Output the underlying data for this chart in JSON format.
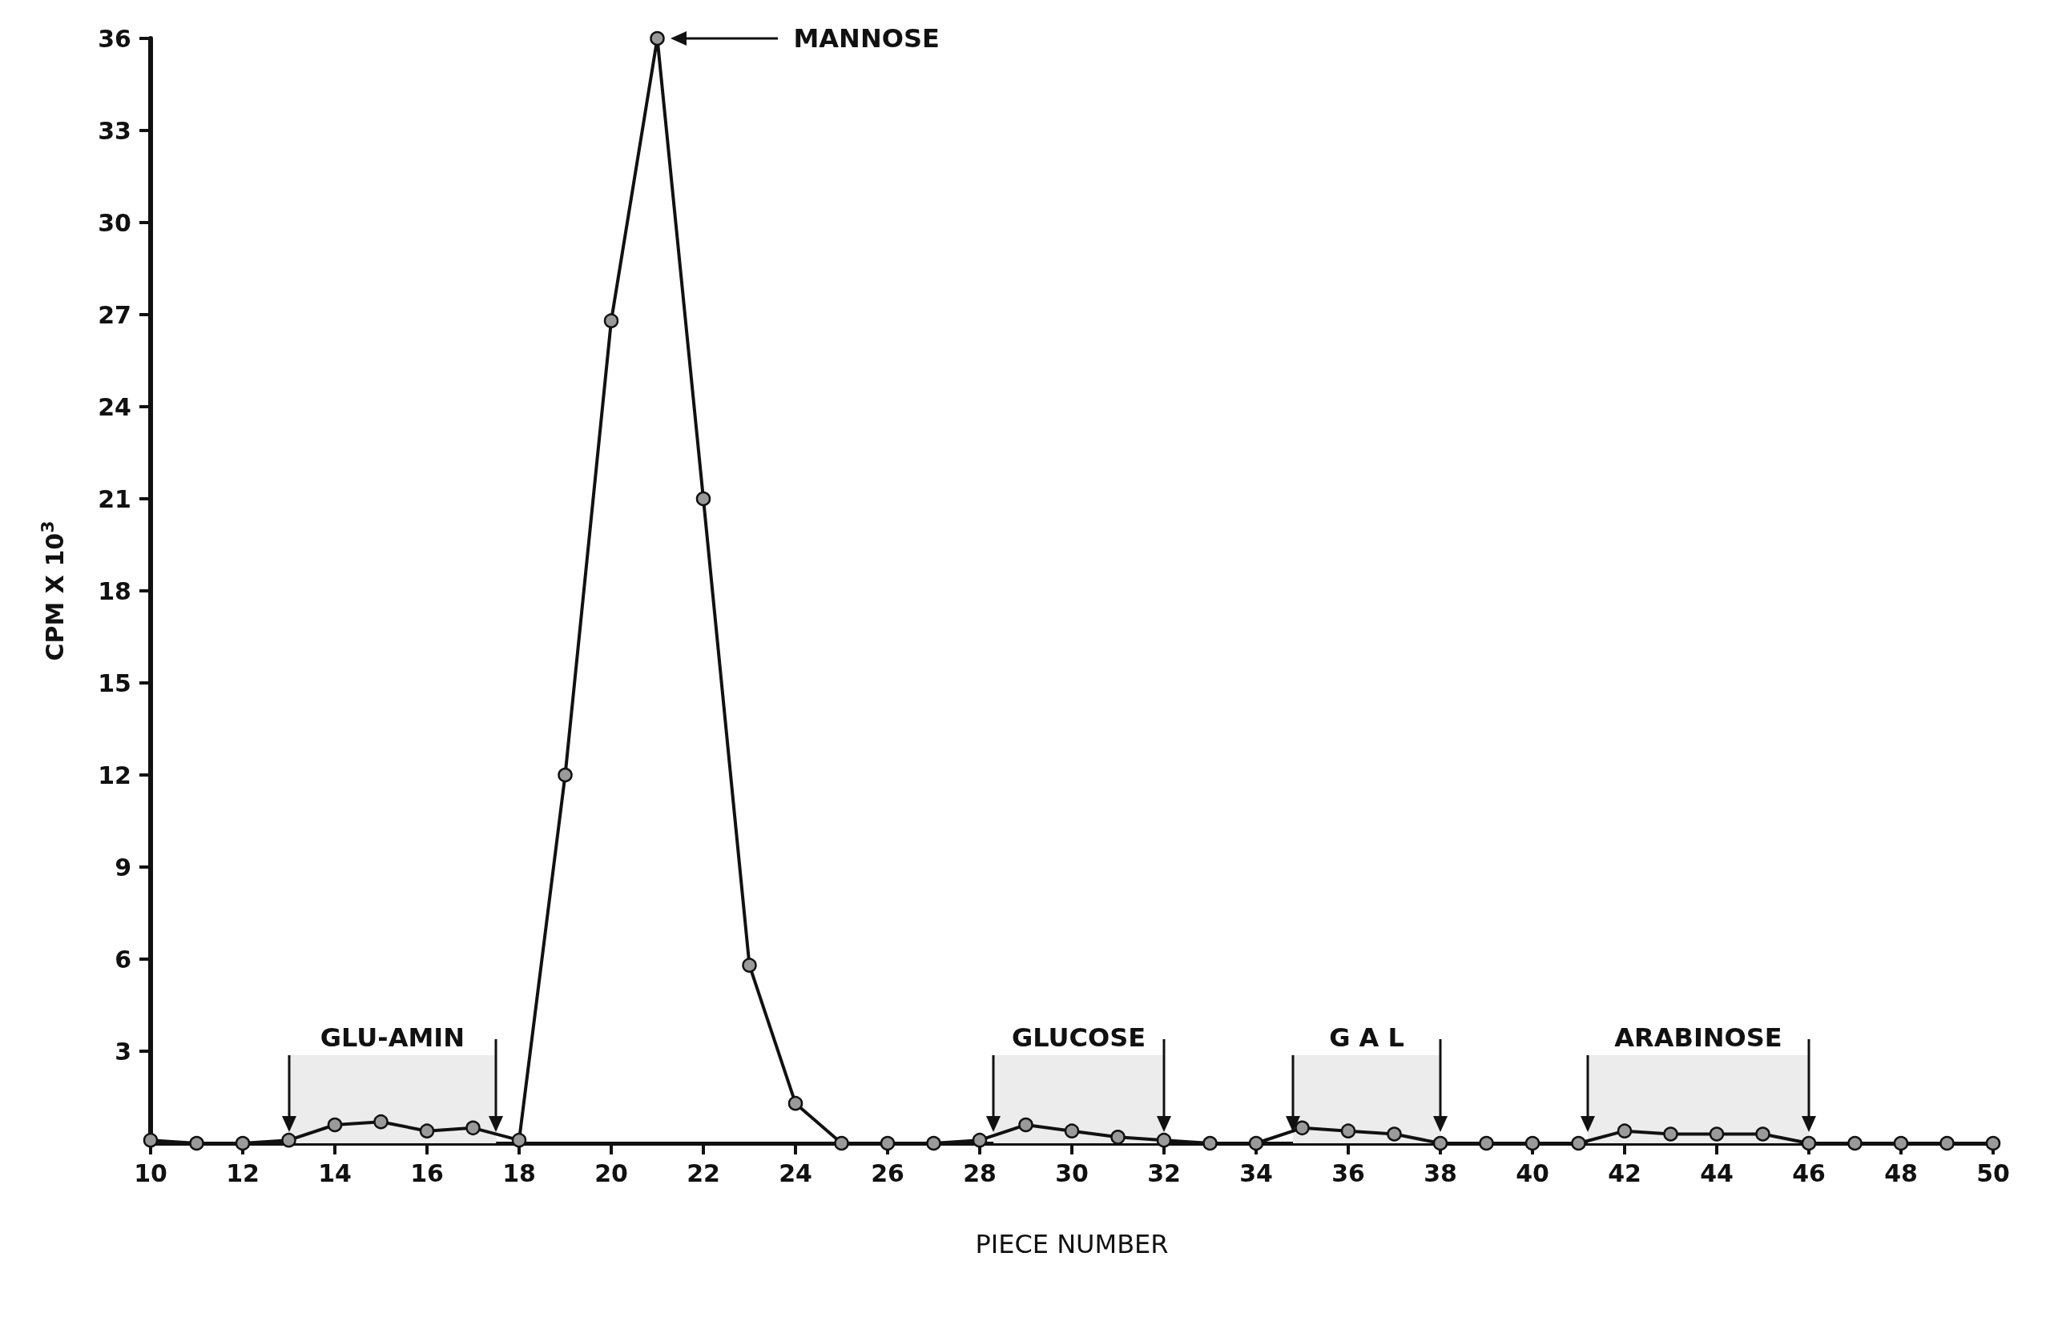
{
  "chart_data": {
    "type": "line",
    "xlabel": "PIECE NUMBER",
    "ylabel": "CPM X 10$^{3}$",
    "x": [
      10,
      11,
      12,
      13,
      14,
      15,
      16,
      17,
      18,
      19,
      20,
      21,
      22,
      23,
      24,
      25,
      26,
      27,
      28,
      29,
      30,
      31,
      32,
      33,
      34,
      35,
      36,
      37,
      38,
      39,
      40,
      41,
      42,
      43,
      44,
      45,
      46,
      47,
      48,
      49,
      50
    ],
    "series": [
      {
        "color": "#111111",
        "values": [
          0.1,
          0,
          0,
          0.1,
          0.6,
          0.7,
          0.4,
          0.5,
          0.1,
          12,
          26.8,
          36,
          21,
          5.8,
          1.3,
          0,
          0,
          0,
          0.1,
          0.6,
          0.4,
          0.2,
          0.1,
          0,
          0,
          0.5,
          0.4,
          0.3,
          0,
          0,
          0,
          0,
          0.4,
          0.3,
          0.3,
          0.3,
          0,
          0,
          0,
          0,
          0
        ]
      }
    ],
    "xlim": [
      10,
      50
    ],
    "xticks": [
      10,
      12,
      14,
      16,
      18,
      20,
      22,
      24,
      26,
      28,
      30,
      32,
      34,
      36,
      38,
      40,
      42,
      44,
      46,
      48,
      50
    ],
    "ylim": [
      0,
      36
    ],
    "yticks": [
      3,
      6,
      9,
      12,
      15,
      18,
      21,
      24,
      27,
      30,
      33,
      36
    ],
    "grid": false,
    "marker": "circle",
    "line_style": "solid",
    "annotations": [
      "MANNOSE"
    ],
    "bands": [
      {
        "axis": "x",
        "from": 13,
        "to": 17.5,
        "label": "GLU-AMIN"
      },
      {
        "axis": "x",
        "from": 28.3,
        "to": 32,
        "label": "GLUCOSE"
      },
      {
        "axis": "x",
        "from": 34.8,
        "to": 38,
        "label": "G A L"
      },
      {
        "axis": "x",
        "from": 41.2,
        "to": 46,
        "label": "ARABINOSE"
      }
    ]
  }
}
